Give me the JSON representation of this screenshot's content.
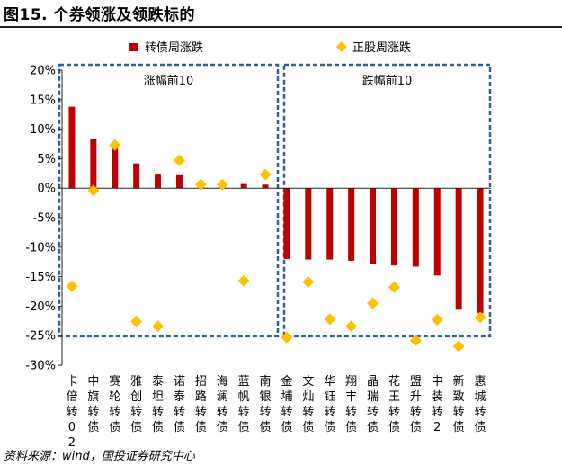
{
  "figure": {
    "title": "图15. 个券领涨及领跌标的",
    "source": "资料来源：wind，国投证券研究中心"
  },
  "chart_data": {
    "type": "bar",
    "title": "图15. 个券领涨及领跌标的",
    "xlabel": "",
    "ylabel": "",
    "ylim": [
      -30,
      20
    ],
    "yticks": [
      "20%",
      "15%",
      "10%",
      "5%",
      "0%",
      "-5%",
      "-10%",
      "-15%",
      "-20%",
      "-25%",
      "-30%"
    ],
    "grid": false,
    "legend_position": "top",
    "categories": [
      "卡倍转02",
      "中旗转债",
      "赛轮转债",
      "雅创转债",
      "泰坦转债",
      "诺泰转债",
      "招路转债",
      "海澜转债",
      "蓝帆转债",
      "南银转债",
      "金埔转债",
      "文灿转债",
      "华钰转债",
      "翔丰转债",
      "晶瑞转债",
      "花王转债",
      "盟升转债",
      "中装转2",
      "新致转债",
      "惠城转债"
    ],
    "series": [
      {
        "name": "转债周涨跌",
        "kind": "bar",
        "color": "#c00000",
        "values": [
          13.8,
          8.4,
          7.0,
          4.2,
          2.3,
          2.2,
          1.0,
          0.9,
          0.7,
          0.6,
          -12.0,
          -12.1,
          -12.1,
          -12.3,
          -12.9,
          -13.1,
          -13.3,
          -14.8,
          -20.6,
          -21.2
        ]
      },
      {
        "name": "正股周涨跌",
        "kind": "marker",
        "color": "#ffc000",
        "values": [
          -16.6,
          -0.4,
          7.3,
          -22.6,
          -23.4,
          4.7,
          0.6,
          0.6,
          -15.7,
          2.3,
          -25.3,
          -15.9,
          -22.2,
          -23.4,
          -19.5,
          -16.8,
          -25.8,
          -22.3,
          -26.8,
          -21.9
        ]
      }
    ],
    "annotations": [
      {
        "label": "涨幅前10",
        "group": "gainers"
      },
      {
        "label": "跌幅前10",
        "group": "losers"
      }
    ]
  }
}
